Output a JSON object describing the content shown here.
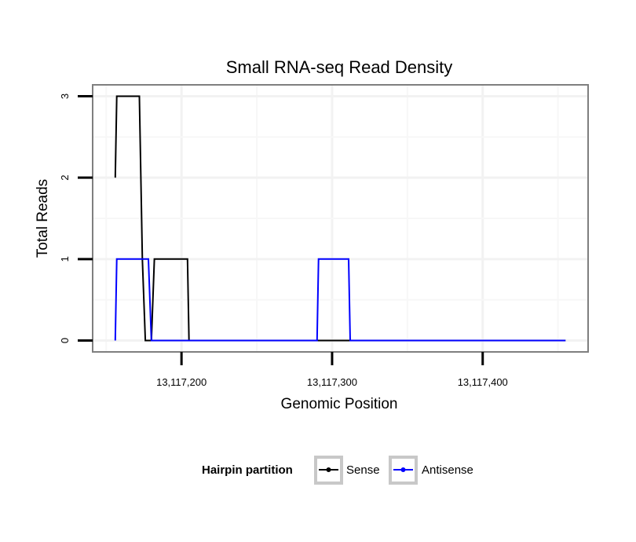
{
  "chart_data": {
    "type": "line",
    "title": "Small RNA-seq Read Density",
    "xlabel": "Genomic Position",
    "ylabel": "Total Reads",
    "xlim": [
      13117141,
      13117470
    ],
    "ylim": [
      -0.14,
      3.14
    ],
    "x_ticks": [
      13117200,
      13117300,
      13117400
    ],
    "x_tick_labels": [
      "13,117,200",
      "13,117,300",
      "13,117,400"
    ],
    "y_ticks": [
      0,
      1,
      2,
      3
    ],
    "y_tick_labels": [
      "0",
      "1",
      "2",
      "3"
    ],
    "grid": true,
    "legend": {
      "title": "Hairpin partition",
      "position": "bottom",
      "entries": [
        {
          "name": "Sense",
          "color": "#000000"
        },
        {
          "name": "Antisense",
          "color": "#0000ff"
        }
      ]
    },
    "series": [
      {
        "name": "Sense",
        "color": "#000000",
        "x": [
          13117156,
          13117157,
          13117172,
          13117174,
          13117176,
          13117180,
          13117182,
          13117204,
          13117205,
          13117455
        ],
        "y": [
          2,
          3,
          3,
          1,
          0,
          0,
          1,
          1,
          0,
          0
        ]
      },
      {
        "name": "Antisense",
        "color": "#0000ff",
        "x": [
          13117156,
          13117157,
          13117178,
          13117180,
          13117205,
          13117290,
          13117291,
          13117311,
          13117312,
          13117455
        ],
        "y": [
          0,
          1,
          1,
          0,
          0,
          0,
          1,
          1,
          0,
          0
        ]
      }
    ]
  }
}
